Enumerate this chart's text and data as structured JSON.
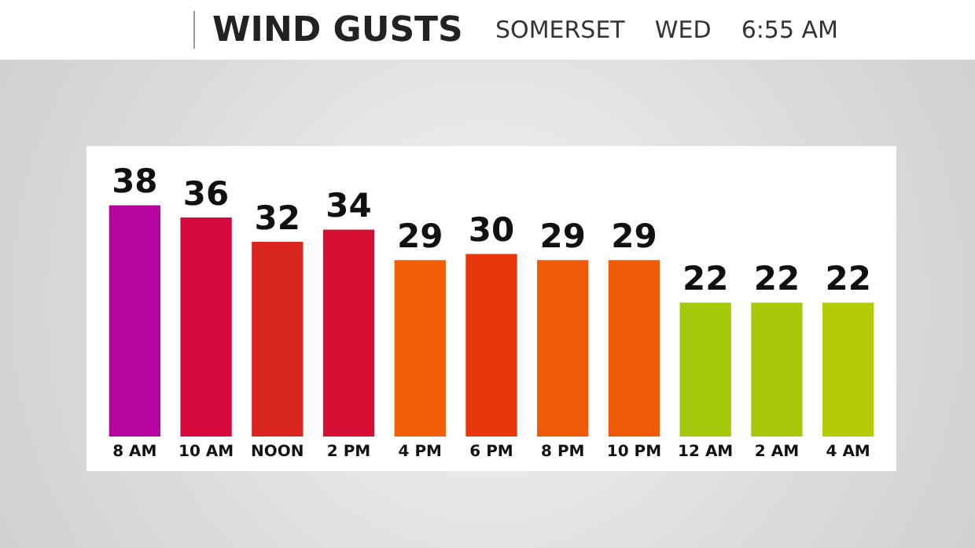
{
  "chart_data": {
    "type": "bar",
    "title": "WIND GUSTS",
    "subtitle": "SOMERSET    WED    6:55 AM",
    "categories": [
      "8 AM",
      "10 AM",
      "NOON",
      "2 PM",
      "4 PM",
      "6 PM",
      "8 PM",
      "10 PM",
      "12 AM",
      "2 AM",
      "4 AM"
    ],
    "values": [
      38,
      36,
      32,
      34,
      29,
      30,
      29,
      29,
      22,
      22,
      22
    ],
    "colors": [
      "#b5049f",
      "#d5093b",
      "#d8261f",
      "#d50f33",
      "#f25f07",
      "#e8370b",
      "#ef5a09",
      "#ef5a09",
      "#a6c80a",
      "#a8c80a",
      "#b4cc06"
    ],
    "data_labels": true,
    "grid": false,
    "legend": false
  }
}
